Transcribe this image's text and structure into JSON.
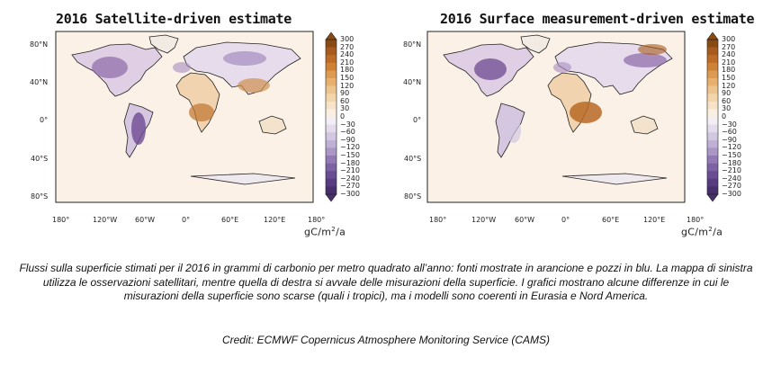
{
  "maps": [
    {
      "title": "2016 Satellite-driven estimate"
    },
    {
      "title": "2016 Surface measurement-driven estimate"
    }
  ],
  "latitude_labels": [
    "80°N",
    "40°N",
    "0°",
    "40°S",
    "80°S"
  ],
  "longitude_labels": [
    "180°",
    "120°W",
    "60°W",
    "0°",
    "60°E",
    "120°E",
    "180°"
  ],
  "colorbar": {
    "ticks": [
      "300",
      "270",
      "240",
      "210",
      "180",
      "150",
      "120",
      "90",
      "60",
      "30",
      "0",
      "−30",
      "−60",
      "−90",
      "−120",
      "−150",
      "−180",
      "−210",
      "−240",
      "−270",
      "−300"
    ],
    "colors": [
      "#8a4a14",
      "#a65a1c",
      "#bd6c27",
      "#cf8236",
      "#dc9a52",
      "#e6b06f",
      "#edc48d",
      "#f2d5ab",
      "#f6e3c8",
      "#faefe0",
      "#f2eef4",
      "#e4dcec",
      "#d2c7e1",
      "#bfb0d4",
      "#aa97c6",
      "#937ab5",
      "#7d62a4",
      "#6a4c93",
      "#583c80",
      "#48306d"
    ],
    "units_base": "gC/m",
    "units_exp": "2",
    "units_tail": "/a"
  },
  "caption": "Flussi sulla superficie stimati per il 2016 in grammi di carbonio per metro quadrato all’anno: fonti mostrate in arancione e pozzi in blu. La mappa di sinistra utilizza le osservazioni satellitari, mentre quella di destra si avvale delle misurazioni della superficie. I grafici mostrano alcune differenze in cui le misurazioni della superficie sono scarse (quali i tropici), ma i modelli sono coerenti in Eurasia e Nord America.",
  "credit": "Credit: ECMWF Copernicus Atmosphere Monitoring Service (CAMS)"
}
